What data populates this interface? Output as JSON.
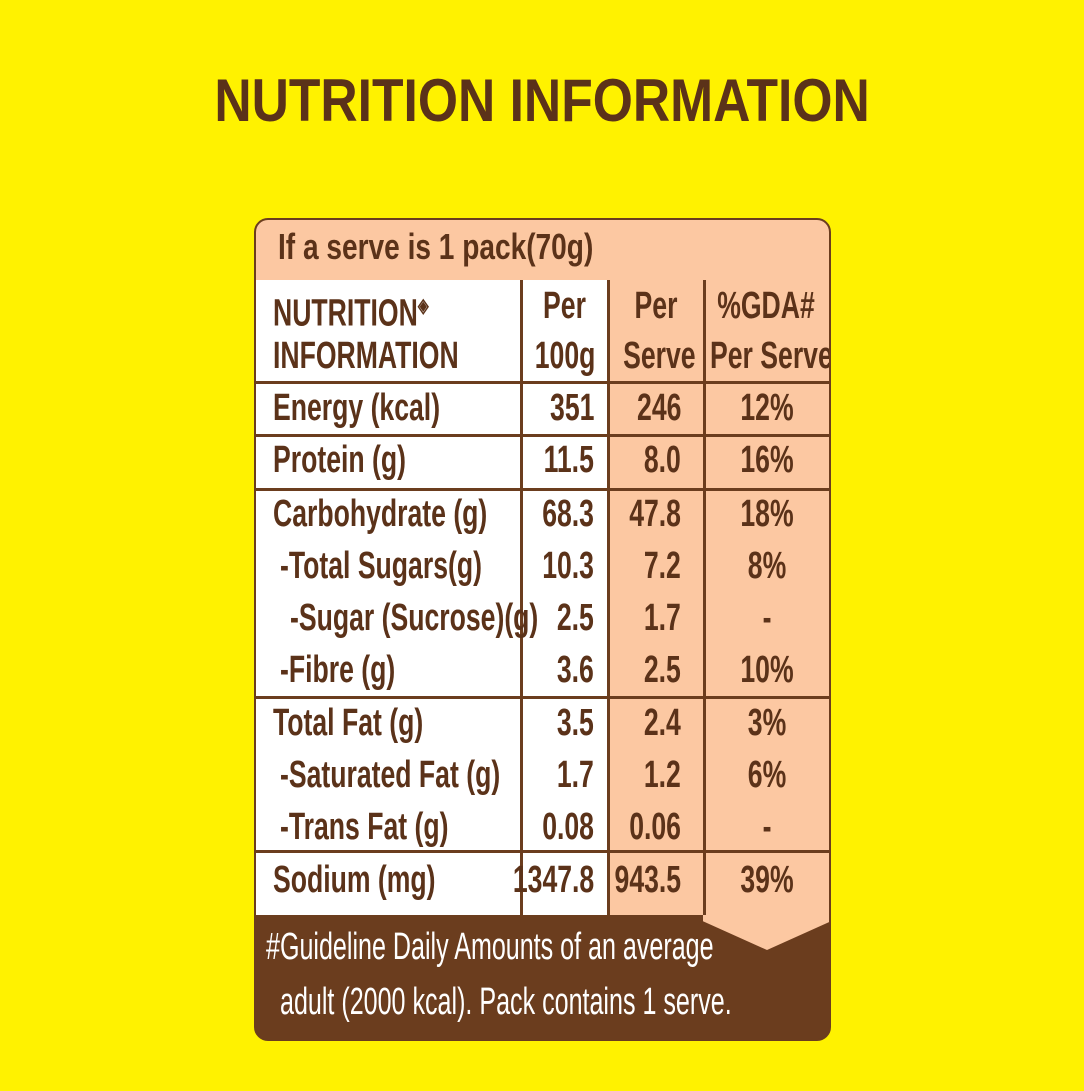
{
  "title": "NUTRITION INFORMATION",
  "serve_note": "If a serve is 1 pack(70g)",
  "header": {
    "col1_line1": "NUTRITION",
    "col1_symbol": "◈",
    "col1_line2": "INFORMATION",
    "col2_line1": "Per",
    "col2_line2": "100g",
    "col3_line1": "Per",
    "col3_line2": "Serve",
    "col4_line1": "%GDA#",
    "col4_line2": "Per Serve"
  },
  "rows": [
    {
      "label": "Energy (kcal)",
      "per100g": "351",
      "perServe": "246",
      "gda": "12%"
    },
    {
      "label": "Protein (g)",
      "per100g": "11.5",
      "perServe": "8.0",
      "gda": "16%"
    },
    {
      "label": "Carbohydrate (g)",
      "per100g": "68.3",
      "perServe": "47.8",
      "gda": "18%"
    },
    {
      "label": " -Total Sugars(g)",
      "per100g": "10.3",
      "perServe": "7.2",
      "gda": "8%"
    },
    {
      "label": "  -Sugar (Sucrose)(g)",
      "per100g": "2.5",
      "perServe": "1.7",
      "gda": "-"
    },
    {
      "label": " -Fibre (g)",
      "per100g": "3.6",
      "perServe": "2.5",
      "gda": "10%"
    },
    {
      "label": "Total Fat (g)",
      "per100g": "3.5",
      "perServe": "2.4",
      "gda": "3%"
    },
    {
      "label": " -Saturated Fat (g)",
      "per100g": "1.7",
      "perServe": "1.2",
      "gda": "6%"
    },
    {
      "label": " -Trans Fat (g)",
      "per100g": "0.08",
      "perServe": "0.06",
      "gda": "-"
    },
    {
      "label": "Sodium (mg)",
      "per100g": "1347.8",
      "perServe": "943.5",
      "gda": "39%"
    }
  ],
  "footnote": {
    "line1": "#Guideline Daily Amounts of an average",
    "line2": "adult (2000 kcal).  Pack contains 1 serve."
  },
  "colors": {
    "background": "#fff200",
    "text": "#5b3219",
    "brown": "#6b3d1e",
    "peach": "#fcc8a2"
  }
}
